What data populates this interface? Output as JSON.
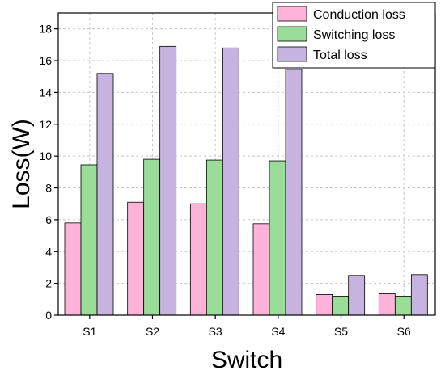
{
  "chart_data": {
    "type": "bar",
    "categories": [
      "S1",
      "S2",
      "S3",
      "S4",
      "S5",
      "S6"
    ],
    "series": [
      {
        "name": "Conduction loss",
        "color": "#ffb3d9",
        "values": [
          5.8,
          7.1,
          7.0,
          5.75,
          1.3,
          1.35
        ]
      },
      {
        "name": "Switching loss",
        "color": "#99dd99",
        "values": [
          9.45,
          9.8,
          9.75,
          9.7,
          1.2,
          1.2
        ]
      },
      {
        "name": "Total loss",
        "color": "#c7b3e0",
        "values": [
          15.2,
          16.9,
          16.8,
          15.45,
          2.5,
          2.55
        ]
      }
    ],
    "xlabel": "Switch",
    "ylabel": "Loss(W)",
    "ylim": [
      0,
      19
    ],
    "yticks": [
      0,
      2,
      4,
      6,
      8,
      10,
      12,
      14,
      16,
      18
    ],
    "grid": true,
    "legend": "top-right"
  }
}
